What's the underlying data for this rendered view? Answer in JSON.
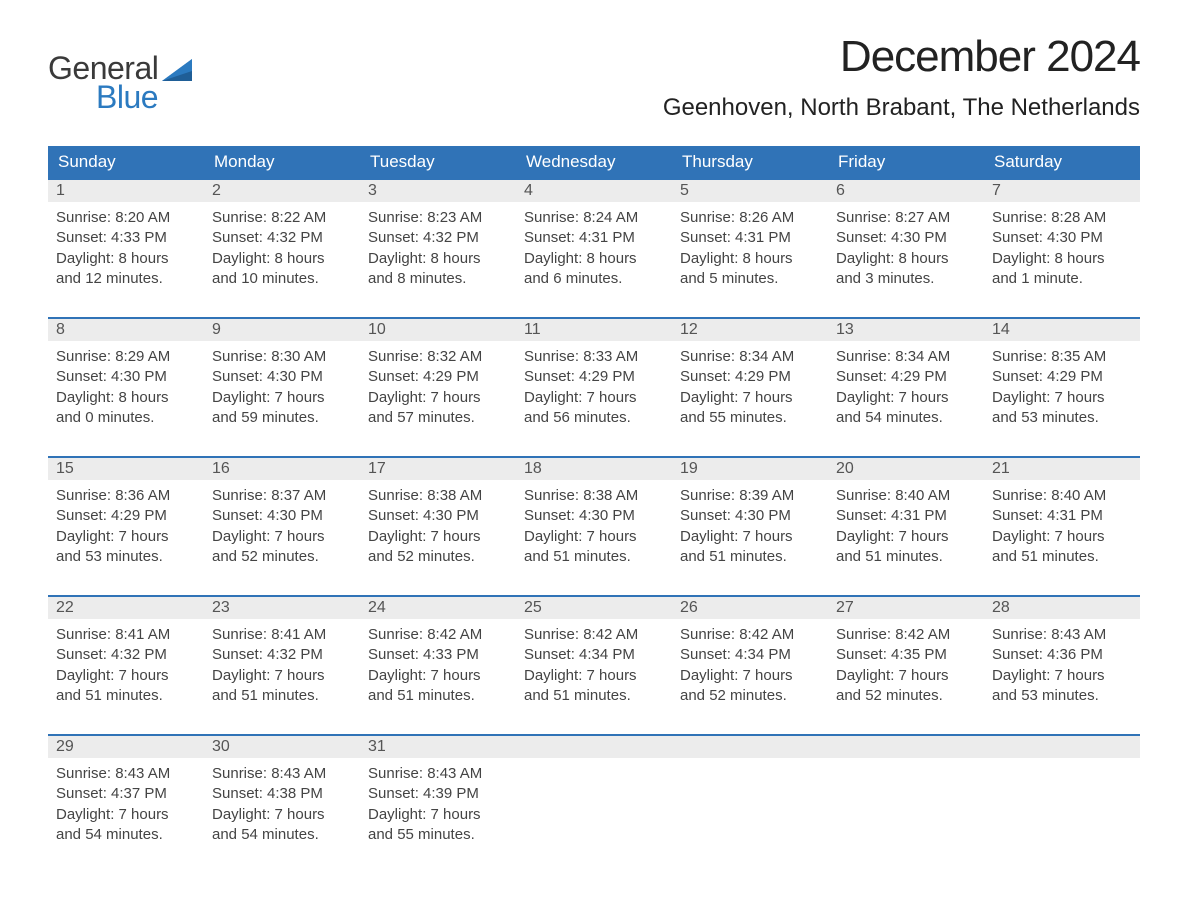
{
  "logo": {
    "general": "General",
    "blue": "Blue"
  },
  "title": "December 2024",
  "location": "Geenhoven, North Brabant, The Netherlands",
  "colors": {
    "header_bg": "#3073b7",
    "header_fg": "#ffffff",
    "daynum_bg": "#ececec",
    "week_border": "#3073b7",
    "logo_blue": "#2b7ac0"
  },
  "day_headers": [
    "Sunday",
    "Monday",
    "Tuesday",
    "Wednesday",
    "Thursday",
    "Friday",
    "Saturday"
  ],
  "weeks": [
    [
      {
        "n": "1",
        "sunrise": "Sunrise: 8:20 AM",
        "sunset": "Sunset: 4:33 PM",
        "d1": "Daylight: 8 hours",
        "d2": "and 12 minutes."
      },
      {
        "n": "2",
        "sunrise": "Sunrise: 8:22 AM",
        "sunset": "Sunset: 4:32 PM",
        "d1": "Daylight: 8 hours",
        "d2": "and 10 minutes."
      },
      {
        "n": "3",
        "sunrise": "Sunrise: 8:23 AM",
        "sunset": "Sunset: 4:32 PM",
        "d1": "Daylight: 8 hours",
        "d2": "and 8 minutes."
      },
      {
        "n": "4",
        "sunrise": "Sunrise: 8:24 AM",
        "sunset": "Sunset: 4:31 PM",
        "d1": "Daylight: 8 hours",
        "d2": "and 6 minutes."
      },
      {
        "n": "5",
        "sunrise": "Sunrise: 8:26 AM",
        "sunset": "Sunset: 4:31 PM",
        "d1": "Daylight: 8 hours",
        "d2": "and 5 minutes."
      },
      {
        "n": "6",
        "sunrise": "Sunrise: 8:27 AM",
        "sunset": "Sunset: 4:30 PM",
        "d1": "Daylight: 8 hours",
        "d2": "and 3 minutes."
      },
      {
        "n": "7",
        "sunrise": "Sunrise: 8:28 AM",
        "sunset": "Sunset: 4:30 PM",
        "d1": "Daylight: 8 hours",
        "d2": "and 1 minute."
      }
    ],
    [
      {
        "n": "8",
        "sunrise": "Sunrise: 8:29 AM",
        "sunset": "Sunset: 4:30 PM",
        "d1": "Daylight: 8 hours",
        "d2": "and 0 minutes."
      },
      {
        "n": "9",
        "sunrise": "Sunrise: 8:30 AM",
        "sunset": "Sunset: 4:30 PM",
        "d1": "Daylight: 7 hours",
        "d2": "and 59 minutes."
      },
      {
        "n": "10",
        "sunrise": "Sunrise: 8:32 AM",
        "sunset": "Sunset: 4:29 PM",
        "d1": "Daylight: 7 hours",
        "d2": "and 57 minutes."
      },
      {
        "n": "11",
        "sunrise": "Sunrise: 8:33 AM",
        "sunset": "Sunset: 4:29 PM",
        "d1": "Daylight: 7 hours",
        "d2": "and 56 minutes."
      },
      {
        "n": "12",
        "sunrise": "Sunrise: 8:34 AM",
        "sunset": "Sunset: 4:29 PM",
        "d1": "Daylight: 7 hours",
        "d2": "and 55 minutes."
      },
      {
        "n": "13",
        "sunrise": "Sunrise: 8:34 AM",
        "sunset": "Sunset: 4:29 PM",
        "d1": "Daylight: 7 hours",
        "d2": "and 54 minutes."
      },
      {
        "n": "14",
        "sunrise": "Sunrise: 8:35 AM",
        "sunset": "Sunset: 4:29 PM",
        "d1": "Daylight: 7 hours",
        "d2": "and 53 minutes."
      }
    ],
    [
      {
        "n": "15",
        "sunrise": "Sunrise: 8:36 AM",
        "sunset": "Sunset: 4:29 PM",
        "d1": "Daylight: 7 hours",
        "d2": "and 53 minutes."
      },
      {
        "n": "16",
        "sunrise": "Sunrise: 8:37 AM",
        "sunset": "Sunset: 4:30 PM",
        "d1": "Daylight: 7 hours",
        "d2": "and 52 minutes."
      },
      {
        "n": "17",
        "sunrise": "Sunrise: 8:38 AM",
        "sunset": "Sunset: 4:30 PM",
        "d1": "Daylight: 7 hours",
        "d2": "and 52 minutes."
      },
      {
        "n": "18",
        "sunrise": "Sunrise: 8:38 AM",
        "sunset": "Sunset: 4:30 PM",
        "d1": "Daylight: 7 hours",
        "d2": "and 51 minutes."
      },
      {
        "n": "19",
        "sunrise": "Sunrise: 8:39 AM",
        "sunset": "Sunset: 4:30 PM",
        "d1": "Daylight: 7 hours",
        "d2": "and 51 minutes."
      },
      {
        "n": "20",
        "sunrise": "Sunrise: 8:40 AM",
        "sunset": "Sunset: 4:31 PM",
        "d1": "Daylight: 7 hours",
        "d2": "and 51 minutes."
      },
      {
        "n": "21",
        "sunrise": "Sunrise: 8:40 AM",
        "sunset": "Sunset: 4:31 PM",
        "d1": "Daylight: 7 hours",
        "d2": "and 51 minutes."
      }
    ],
    [
      {
        "n": "22",
        "sunrise": "Sunrise: 8:41 AM",
        "sunset": "Sunset: 4:32 PM",
        "d1": "Daylight: 7 hours",
        "d2": "and 51 minutes."
      },
      {
        "n": "23",
        "sunrise": "Sunrise: 8:41 AM",
        "sunset": "Sunset: 4:32 PM",
        "d1": "Daylight: 7 hours",
        "d2": "and 51 minutes."
      },
      {
        "n": "24",
        "sunrise": "Sunrise: 8:42 AM",
        "sunset": "Sunset: 4:33 PM",
        "d1": "Daylight: 7 hours",
        "d2": "and 51 minutes."
      },
      {
        "n": "25",
        "sunrise": "Sunrise: 8:42 AM",
        "sunset": "Sunset: 4:34 PM",
        "d1": "Daylight: 7 hours",
        "d2": "and 51 minutes."
      },
      {
        "n": "26",
        "sunrise": "Sunrise: 8:42 AM",
        "sunset": "Sunset: 4:34 PM",
        "d1": "Daylight: 7 hours",
        "d2": "and 52 minutes."
      },
      {
        "n": "27",
        "sunrise": "Sunrise: 8:42 AM",
        "sunset": "Sunset: 4:35 PM",
        "d1": "Daylight: 7 hours",
        "d2": "and 52 minutes."
      },
      {
        "n": "28",
        "sunrise": "Sunrise: 8:43 AM",
        "sunset": "Sunset: 4:36 PM",
        "d1": "Daylight: 7 hours",
        "d2": "and 53 minutes."
      }
    ],
    [
      {
        "n": "29",
        "sunrise": "Sunrise: 8:43 AM",
        "sunset": "Sunset: 4:37 PM",
        "d1": "Daylight: 7 hours",
        "d2": "and 54 minutes."
      },
      {
        "n": "30",
        "sunrise": "Sunrise: 8:43 AM",
        "sunset": "Sunset: 4:38 PM",
        "d1": "Daylight: 7 hours",
        "d2": "and 54 minutes."
      },
      {
        "n": "31",
        "sunrise": "Sunrise: 8:43 AM",
        "sunset": "Sunset: 4:39 PM",
        "d1": "Daylight: 7 hours",
        "d2": "and 55 minutes."
      },
      {
        "empty": true
      },
      {
        "empty": true
      },
      {
        "empty": true
      },
      {
        "empty": true
      }
    ]
  ]
}
